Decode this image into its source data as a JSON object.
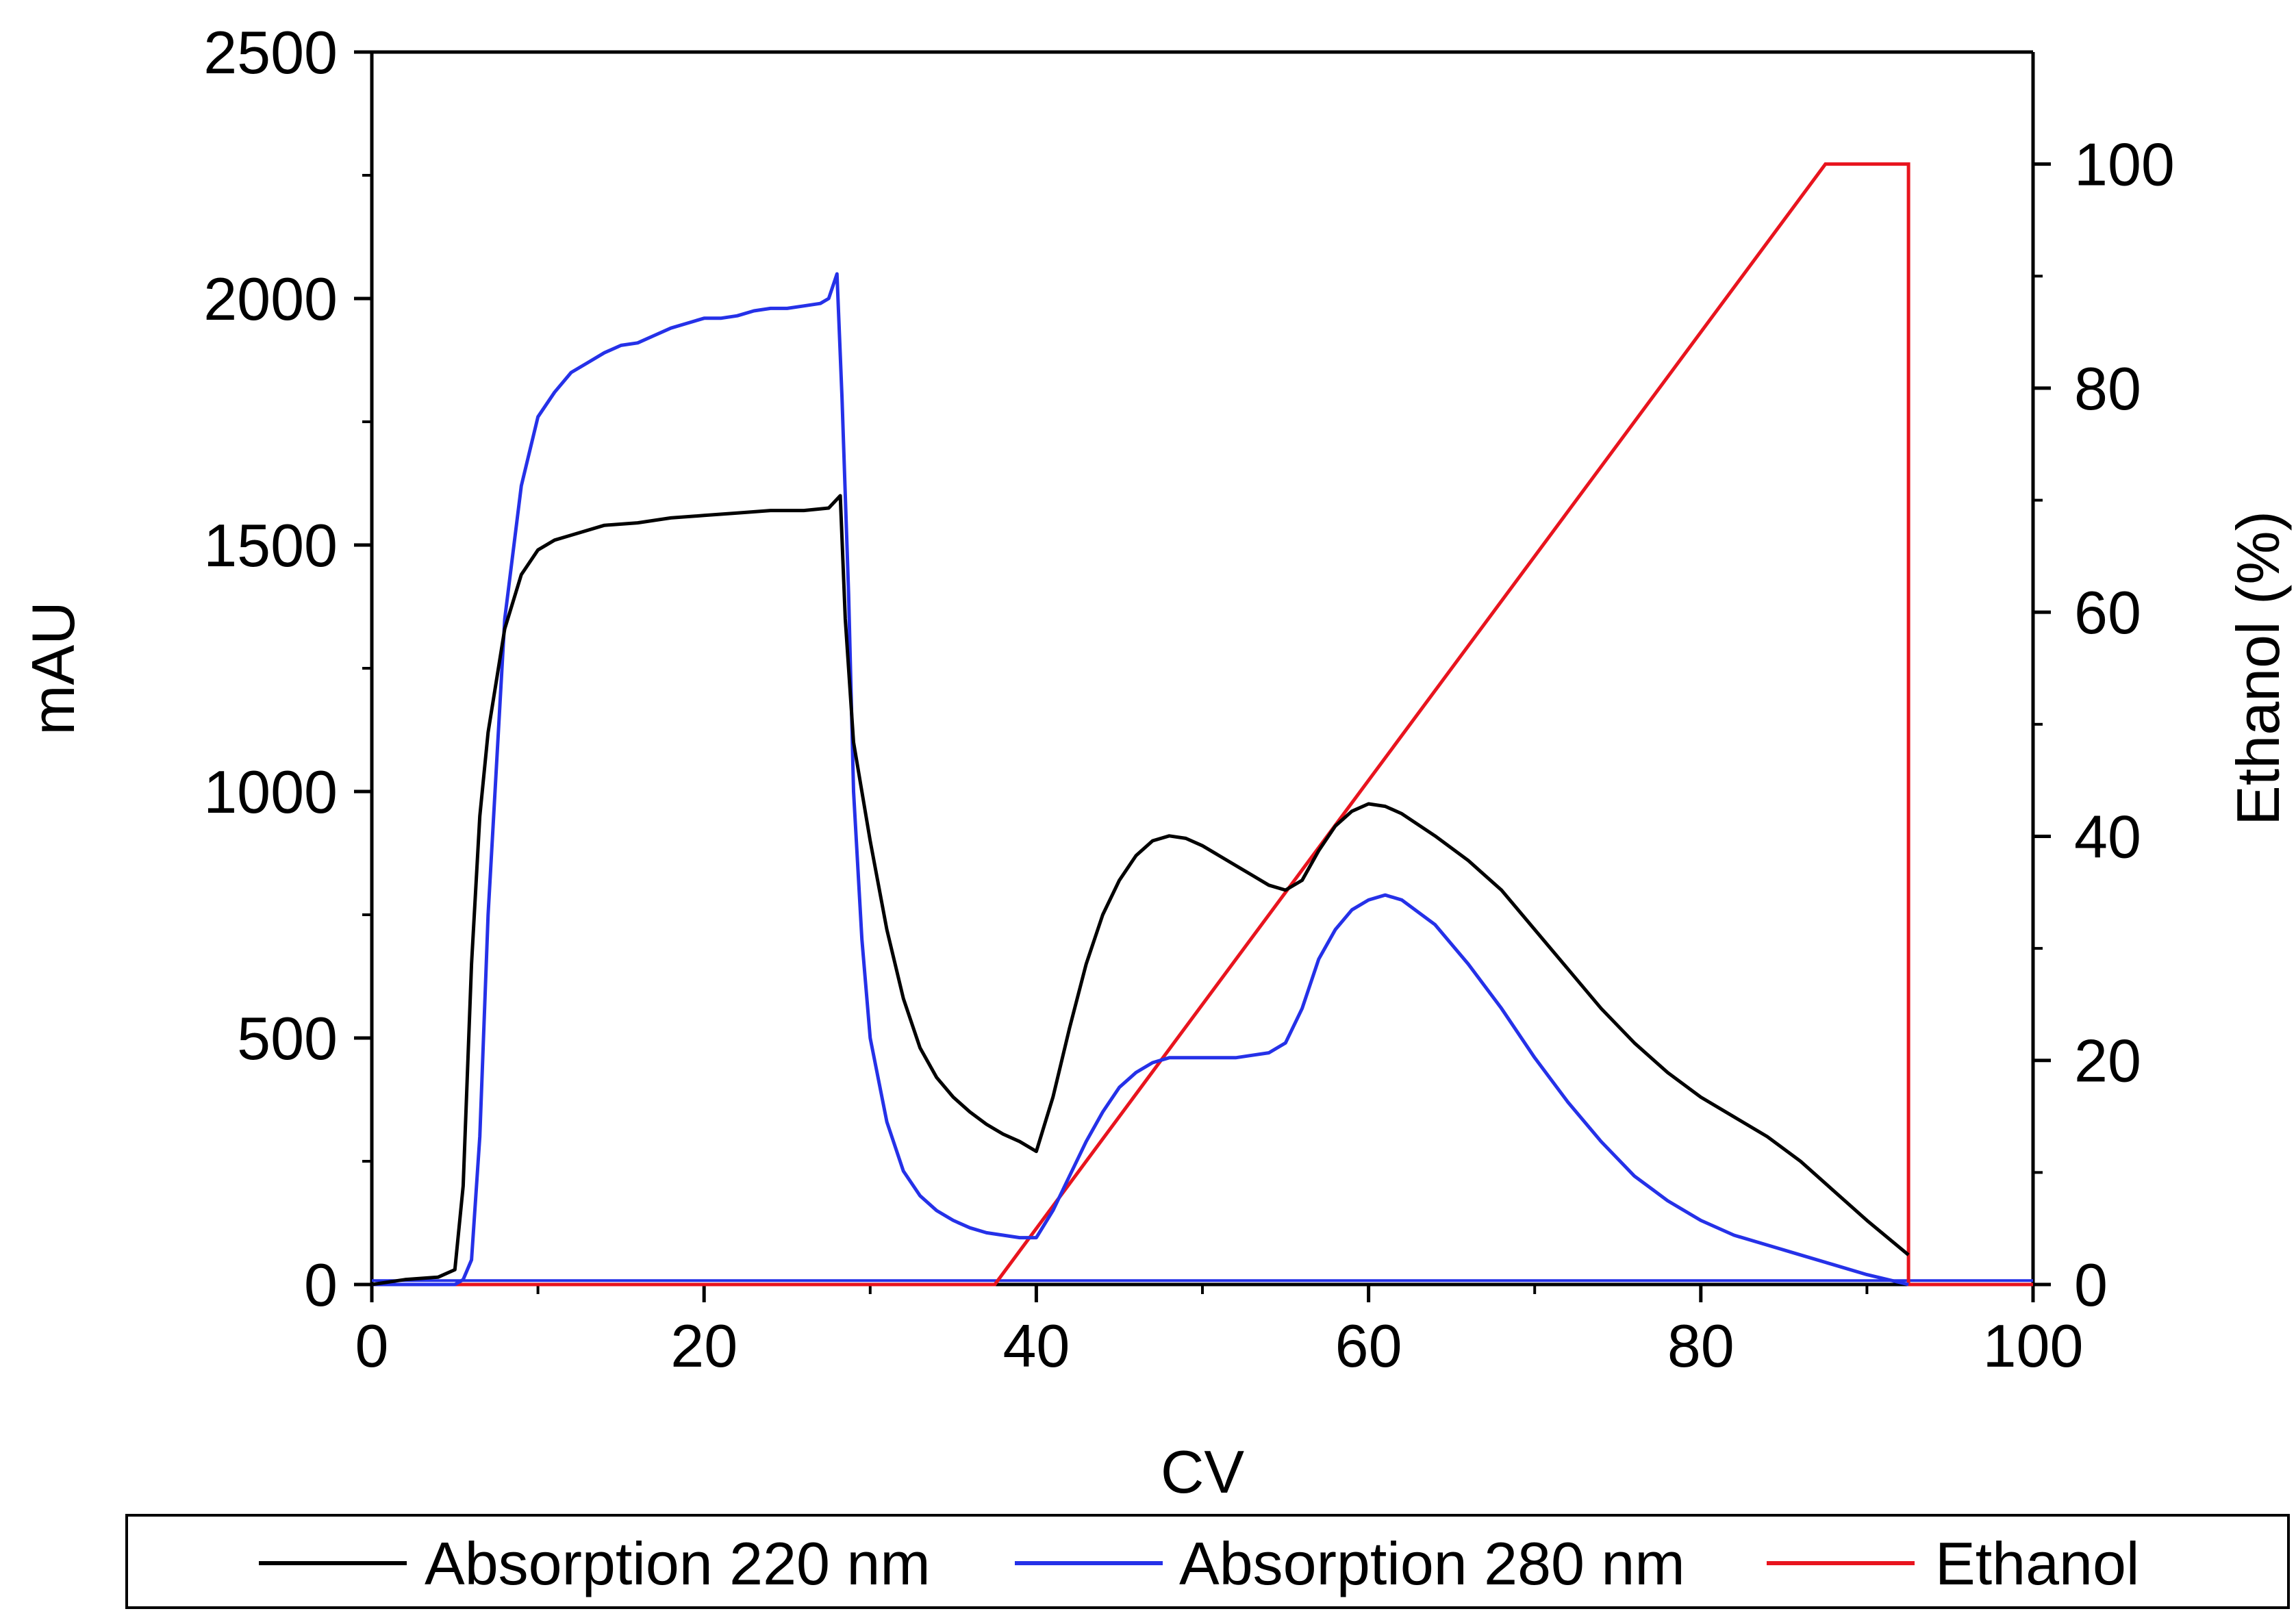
{
  "chart_data": {
    "type": "line",
    "title": "",
    "xlabel": "CV",
    "ylabel": "mAU",
    "y2label": "Ethanol (%)",
    "xlim": [
      0,
      100
    ],
    "ylim": [
      0,
      2500
    ],
    "y2lim": [
      0,
      110
    ],
    "x_ticks": [
      0,
      20,
      40,
      60,
      80,
      100
    ],
    "x_tick_labels": [
      "0",
      "20",
      "40",
      "60",
      "80",
      "100"
    ],
    "y_ticks": [
      0,
      500,
      1000,
      1500,
      2000,
      2500
    ],
    "y_tick_labels": [
      "0",
      "500",
      "1000",
      "1500",
      "2000",
      "2500"
    ],
    "y2_ticks": [
      0,
      20,
      40,
      60,
      80,
      100
    ],
    "y2_tick_labels": [
      "0",
      "20",
      "40",
      "60",
      "80",
      "100"
    ],
    "grid": false,
    "legend_position": "bottom",
    "series": [
      {
        "name": "Absorption 220 nm",
        "axis": "left",
        "color": "#000000",
        "x": [
          0,
          2,
          4,
          5,
          5.5,
          6,
          6.5,
          7,
          8,
          9,
          10,
          11,
          12,
          14,
          16,
          18,
          20,
          22,
          24,
          26,
          27.5,
          28.2,
          28.5,
          29,
          30,
          31,
          32,
          33,
          34,
          35,
          36,
          37,
          38,
          39,
          40,
          41,
          42,
          43,
          44,
          45,
          46,
          47,
          48,
          49,
          50,
          51,
          52,
          53,
          54,
          55,
          56,
          57,
          58,
          59,
          60,
          61,
          62,
          64,
          66,
          68,
          70,
          72,
          74,
          76,
          78,
          80,
          82,
          84,
          86,
          88,
          90,
          92.5
        ],
        "values": [
          0,
          10,
          15,
          30,
          200,
          650,
          950,
          1120,
          1330,
          1440,
          1490,
          1510,
          1520,
          1540,
          1545,
          1555,
          1560,
          1565,
          1570,
          1570,
          1575,
          1600,
          1350,
          1100,
          900,
          720,
          580,
          480,
          420,
          380,
          350,
          325,
          305,
          290,
          270,
          380,
          520,
          650,
          750,
          820,
          870,
          900,
          910,
          905,
          890,
          870,
          850,
          830,
          810,
          800,
          820,
          880,
          930,
          960,
          975,
          970,
          955,
          910,
          860,
          800,
          720,
          640,
          560,
          490,
          430,
          380,
          340,
          300,
          250,
          190,
          130,
          60
        ]
      },
      {
        "name": "Absorption 280 nm",
        "axis": "left",
        "color": "#2531e8",
        "x": [
          0,
          2,
          4,
          5,
          5.5,
          6,
          6.5,
          7,
          8,
          9,
          10,
          11,
          12,
          13,
          14,
          15,
          16,
          17,
          18,
          19,
          20,
          21,
          22,
          23,
          24,
          25,
          26,
          27,
          27.5,
          28,
          28.3,
          28.7,
          29,
          29.5,
          30,
          31,
          32,
          33,
          34,
          35,
          36,
          37,
          38,
          39,
          40,
          41,
          42,
          43,
          44,
          45,
          46,
          47,
          48,
          49,
          50,
          51,
          52,
          53,
          54,
          55,
          56,
          57,
          58,
          59,
          60,
          61,
          62,
          64,
          66,
          68,
          70,
          72,
          74,
          76,
          78,
          80,
          82,
          84,
          86,
          88,
          90,
          92.5
        ],
        "values": [
          0,
          0,
          0,
          0,
          10,
          50,
          300,
          750,
          1350,
          1620,
          1760,
          1810,
          1850,
          1870,
          1890,
          1905,
          1910,
          1925,
          1940,
          1950,
          1960,
          1960,
          1965,
          1975,
          1980,
          1980,
          1985,
          1990,
          2000,
          2050,
          1800,
          1400,
          1000,
          700,
          500,
          330,
          230,
          180,
          150,
          130,
          115,
          105,
          100,
          95,
          95,
          150,
          220,
          290,
          350,
          400,
          430,
          450,
          460,
          460,
          460,
          460,
          460,
          465,
          470,
          490,
          560,
          660,
          720,
          760,
          780,
          790,
          780,
          730,
          650,
          560,
          460,
          370,
          290,
          220,
          170,
          130,
          100,
          80,
          60,
          40,
          20,
          0
        ]
      },
      {
        "name": "Ethanol",
        "axis": "right",
        "color": "#e8141e",
        "x": [
          0,
          37.5,
          87.5,
          92.5,
          92.5,
          100
        ],
        "values": [
          0,
          0,
          100,
          100,
          0,
          0
        ]
      }
    ],
    "baseline_series": [
      {
        "name": "220 nm baseline",
        "color": "#000000",
        "x": [
          0,
          100
        ],
        "values": [
          0,
          0
        ]
      },
      {
        "name": "280 nm baseline",
        "color": "#2531e8",
        "x": [
          0,
          100
        ],
        "values": [
          8,
          8
        ]
      }
    ]
  },
  "legend": {
    "items": [
      {
        "label": "Absorption 220 nm",
        "color": "#000000"
      },
      {
        "label": "Absorption 280 nm",
        "color": "#2531e8"
      },
      {
        "label": "Ethanol",
        "color": "#e8141e"
      }
    ]
  }
}
